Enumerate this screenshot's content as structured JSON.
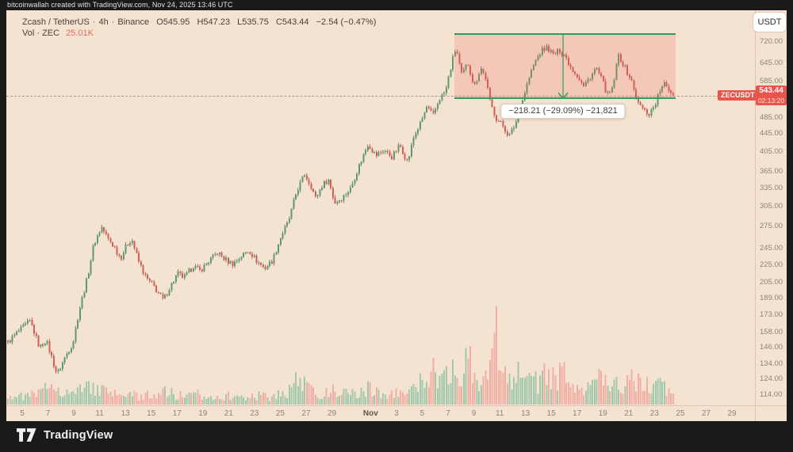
{
  "frame": {
    "attribution": "bitcoinwallah created with TradingView.com, Nov 24, 2025 13:46 UTC",
    "brand": "TradingView"
  },
  "legend": {
    "symbol": "Zcash / TetherUS",
    "interval": "4h",
    "exchange": "Binance",
    "ohlc": {
      "open": "O545.95",
      "high": "H547.23",
      "low": "L535.75",
      "close": "C543.44",
      "change": "−2.54 (−0.47%)"
    },
    "volume_label": "Vol · ZEC",
    "volume_value": "25.01K"
  },
  "price_axis": {
    "currency_button": "USDT",
    "labels": [
      "720.00",
      "645.00",
      "585.00",
      "485.00",
      "445.00",
      "405.00",
      "365.00",
      "335.00",
      "305.00",
      "275.00",
      "245.00",
      "225.00",
      "205.00",
      "189.00",
      "173.00",
      "158.00",
      "146.00",
      "134.00",
      "124.00",
      "114.00"
    ],
    "last_price": {
      "tag": "ZECUSDT",
      "value": "543.44",
      "countdown": "02:13:20"
    }
  },
  "time_axis": {
    "ticks": [
      {
        "label": "5",
        "day": 0
      },
      {
        "label": "7",
        "day": 2
      },
      {
        "label": "9",
        "day": 4
      },
      {
        "label": "11",
        "day": 6
      },
      {
        "label": "13",
        "day": 8
      },
      {
        "label": "15",
        "day": 10
      },
      {
        "label": "17",
        "day": 12
      },
      {
        "label": "19",
        "day": 14
      },
      {
        "label": "21",
        "day": 16
      },
      {
        "label": "23",
        "day": 18
      },
      {
        "label": "25",
        "day": 20
      },
      {
        "label": "27",
        "day": 22
      },
      {
        "label": "29",
        "day": 24
      },
      {
        "label": "Nov",
        "day": 27,
        "bold": true
      },
      {
        "label": "3",
        "day": 29
      },
      {
        "label": "5",
        "day": 31
      },
      {
        "label": "7",
        "day": 33
      },
      {
        "label": "9",
        "day": 35
      },
      {
        "label": "11",
        "day": 37
      },
      {
        "label": "13",
        "day": 39
      },
      {
        "label": "15",
        "day": 41
      },
      {
        "label": "17",
        "day": 43
      },
      {
        "label": "19",
        "day": 45
      },
      {
        "label": "21",
        "day": 47
      },
      {
        "label": "23",
        "day": 49
      },
      {
        "label": "25",
        "day": 51
      },
      {
        "label": "27",
        "day": 53
      },
      {
        "label": "29",
        "day": 55
      }
    ]
  },
  "measurement": {
    "display": "−218.21 (−29.09%) −21,821",
    "change": "−218.21",
    "percent": "−29.09%",
    "ticks": "−21,821",
    "from_price": 750.0,
    "to_price": 531.79,
    "from_day": 33.5,
    "to_day": 50.65,
    "arrow_day": 41.92
  },
  "chart_data": {
    "type": "candlestick",
    "symbol": "ZECUSDT",
    "exchange": "Binance",
    "interval": "4h",
    "y_scale": "log",
    "ylim": [
      110,
      770
    ],
    "x_start_date": "Oct 5",
    "x_end_date": "Nov 29",
    "last_close": 543.44,
    "price_path_day_price": [
      [
        -1.11,
        150
      ],
      [
        -0.37,
        158
      ],
      [
        0.61,
        168
      ],
      [
        1.35,
        146
      ],
      [
        1.84,
        152
      ],
      [
        2.7,
        127
      ],
      [
        3.32,
        139
      ],
      [
        3.93,
        150
      ],
      [
        4.42,
        178
      ],
      [
        5.04,
        210
      ],
      [
        5.53,
        250
      ],
      [
        6.14,
        274
      ],
      [
        6.64,
        258
      ],
      [
        7.13,
        247
      ],
      [
        7.62,
        233
      ],
      [
        8.11,
        250
      ],
      [
        8.48,
        258
      ],
      [
        8.97,
        231
      ],
      [
        9.59,
        210
      ],
      [
        10.2,
        201
      ],
      [
        10.94,
        187
      ],
      [
        11.43,
        200
      ],
      [
        12.04,
        215
      ],
      [
        12.54,
        210
      ],
      [
        13.27,
        224
      ],
      [
        13.76,
        218
      ],
      [
        14.38,
        228
      ],
      [
        15.12,
        240
      ],
      [
        15.73,
        231
      ],
      [
        16.34,
        226
      ],
      [
        16.96,
        235
      ],
      [
        17.57,
        243
      ],
      [
        18.19,
        229
      ],
      [
        18.8,
        221
      ],
      [
        19.42,
        231
      ],
      [
        20.03,
        260
      ],
      [
        20.65,
        283
      ],
      [
        21.26,
        330
      ],
      [
        21.88,
        361
      ],
      [
        22.37,
        340
      ],
      [
        22.74,
        318
      ],
      [
        23.23,
        340
      ],
      [
        23.72,
        352
      ],
      [
        24.21,
        311
      ],
      [
        24.83,
        320
      ],
      [
        25.44,
        335
      ],
      [
        26.06,
        375
      ],
      [
        26.79,
        423
      ],
      [
        27.41,
        398
      ],
      [
        28.02,
        410
      ],
      [
        28.64,
        395
      ],
      [
        29.25,
        420
      ],
      [
        29.86,
        385
      ],
      [
        30.36,
        440
      ],
      [
        30.85,
        470
      ],
      [
        31.34,
        512
      ],
      [
        31.83,
        490
      ],
      [
        32.32,
        535
      ],
      [
        32.81,
        556
      ],
      [
        33.31,
        650
      ],
      [
        33.61,
        700
      ],
      [
        34.04,
        605
      ],
      [
        34.53,
        645
      ],
      [
        35.03,
        570
      ],
      [
        35.52,
        630
      ],
      [
        35.89,
        600
      ],
      [
        36.26,
        524
      ],
      [
        36.75,
        483
      ],
      [
        37.24,
        465
      ],
      [
        37.73,
        440
      ],
      [
        38.22,
        470
      ],
      [
        38.71,
        524
      ],
      [
        39.21,
        590
      ],
      [
        39.7,
        645
      ],
      [
        40.19,
        686
      ],
      [
        40.68,
        700
      ],
      [
        41.17,
        672
      ],
      [
        41.66,
        690
      ],
      [
        42.03,
        672
      ],
      [
        42.52,
        630
      ],
      [
        43.01,
        605
      ],
      [
        43.51,
        570
      ],
      [
        44.0,
        600
      ],
      [
        44.49,
        628
      ],
      [
        44.98,
        585
      ],
      [
        45.35,
        545
      ],
      [
        45.72,
        560
      ],
      [
        46.21,
        672
      ],
      [
        46.7,
        630
      ],
      [
        47.19,
        590
      ],
      [
        47.69,
        524
      ],
      [
        48.18,
        505
      ],
      [
        48.55,
        494
      ],
      [
        49.04,
        520
      ],
      [
        49.41,
        558
      ],
      [
        49.78,
        578
      ],
      [
        50.15,
        560
      ],
      [
        50.58,
        543.44
      ]
    ],
    "volume_rel_day_value": [
      [
        -1.1,
        12
      ],
      [
        0.12,
        10
      ],
      [
        1.35,
        14
      ],
      [
        1.97,
        22
      ],
      [
        2.58,
        30
      ],
      [
        3.2,
        16
      ],
      [
        4.12,
        14
      ],
      [
        5.04,
        26
      ],
      [
        5.65,
        20
      ],
      [
        6.27,
        16
      ],
      [
        7.19,
        12
      ],
      [
        8.11,
        14
      ],
      [
        9.03,
        10
      ],
      [
        9.96,
        12
      ],
      [
        10.88,
        18
      ],
      [
        11.8,
        12
      ],
      [
        12.72,
        10
      ],
      [
        13.64,
        12
      ],
      [
        14.56,
        10
      ],
      [
        15.49,
        12
      ],
      [
        16.41,
        9
      ],
      [
        17.33,
        10
      ],
      [
        18.25,
        12
      ],
      [
        19.17,
        9
      ],
      [
        20.1,
        14
      ],
      [
        20.71,
        18
      ],
      [
        21.33,
        34
      ],
      [
        21.94,
        22
      ],
      [
        22.56,
        16
      ],
      [
        23.48,
        14
      ],
      [
        24.4,
        18
      ],
      [
        25.32,
        12
      ],
      [
        26.24,
        16
      ],
      [
        26.86,
        20
      ],
      [
        27.78,
        14
      ],
      [
        28.7,
        12
      ],
      [
        29.32,
        16
      ],
      [
        29.93,
        12
      ],
      [
        30.54,
        22
      ],
      [
        31.16,
        30
      ],
      [
        31.77,
        45
      ],
      [
        32.38,
        25
      ],
      [
        33.0,
        50
      ],
      [
        33.43,
        52
      ],
      [
        33.92,
        30
      ],
      [
        34.53,
        62
      ],
      [
        35.15,
        35
      ],
      [
        35.76,
        28
      ],
      [
        36.38,
        40
      ],
      [
        36.75,
        123
      ],
      [
        37.12,
        55
      ],
      [
        37.61,
        35
      ],
      [
        38.22,
        42
      ],
      [
        38.84,
        30
      ],
      [
        39.45,
        25
      ],
      [
        40.07,
        30
      ],
      [
        40.68,
        42
      ],
      [
        41.29,
        35
      ],
      [
        41.91,
        38
      ],
      [
        42.52,
        25
      ],
      [
        43.14,
        20
      ],
      [
        43.75,
        28
      ],
      [
        44.37,
        32
      ],
      [
        44.98,
        30
      ],
      [
        45.6,
        18
      ],
      [
        46.21,
        25
      ],
      [
        46.82,
        28
      ],
      [
        47.44,
        30
      ],
      [
        47.93,
        38
      ],
      [
        48.36,
        30
      ],
      [
        48.79,
        25
      ],
      [
        49.28,
        28
      ],
      [
        49.78,
        20
      ],
      [
        50.21,
        14
      ],
      [
        50.58,
        10
      ]
    ],
    "colors": {
      "background": "#f5e3d1",
      "up_body": "#5e9a6c",
      "up_wick": "#417750",
      "down_body": "#d15f56",
      "down_wick": "#b04b44",
      "vol_up": "#8fc2a3",
      "vol_down": "#efa198",
      "range_border": "#36985d",
      "range_fill": "rgba(233,96,86,0.20)",
      "last_price_label": "#e9544d"
    }
  }
}
